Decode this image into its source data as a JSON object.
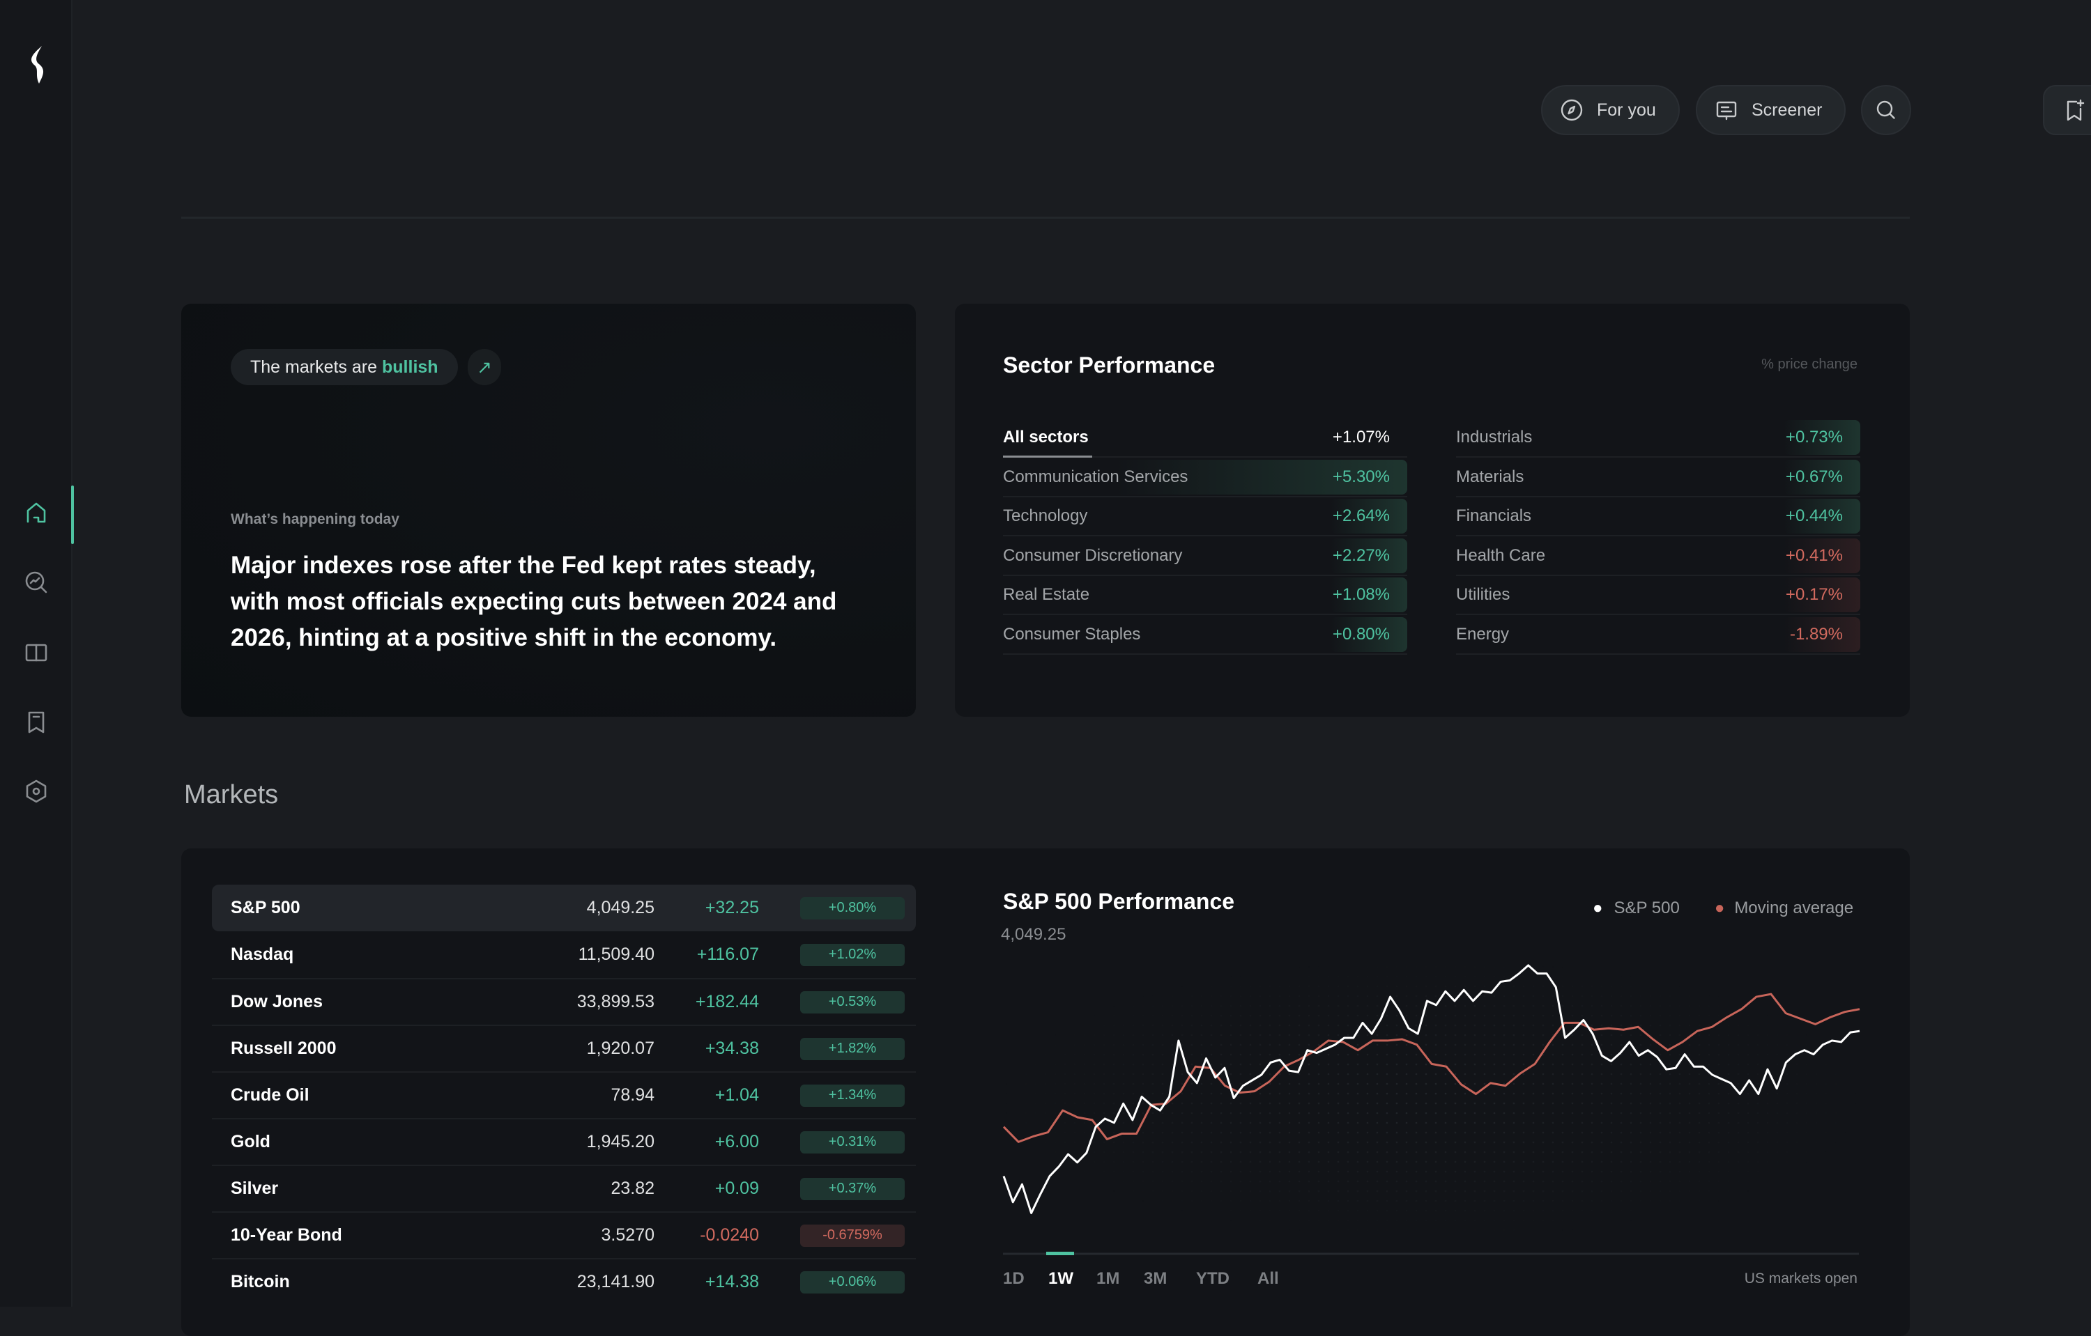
{
  "sidebar": {
    "items": [
      {
        "name": "home",
        "active": true
      },
      {
        "name": "explore"
      },
      {
        "name": "learn"
      },
      {
        "name": "watchlist"
      },
      {
        "name": "settings"
      }
    ]
  },
  "header": {
    "for_you": "For you",
    "screener": "Screener"
  },
  "hero": {
    "tag_prefix": "The markets are",
    "tag_highlight": "bullish",
    "subtitle": "What’s happening today",
    "headline": "Major indexes rose after the Fed kept rates steady, with most officials expecting cuts between 2024 and 2026, hinting at a positive shift in the economy."
  },
  "sector": {
    "title": "Sector Performance",
    "note": "% price change",
    "left": [
      {
        "name": "All sectors",
        "value": "+1.07%",
        "tone": "all"
      },
      {
        "name": "Communication Services",
        "value": "+5.30%",
        "tone": "pos"
      },
      {
        "name": "Technology",
        "value": "+2.64%",
        "tone": "pos"
      },
      {
        "name": "Consumer Discretionary",
        "value": "+2.27%",
        "tone": "pos"
      },
      {
        "name": "Real Estate",
        "value": "+1.08%",
        "tone": "pos"
      },
      {
        "name": "Consumer Staples",
        "value": "+0.80%",
        "tone": "pos"
      }
    ],
    "right": [
      {
        "name": "Industrials",
        "value": "+0.73%",
        "tone": "pos"
      },
      {
        "name": "Materials",
        "value": "+0.67%",
        "tone": "pos"
      },
      {
        "name": "Financials",
        "value": "+0.44%",
        "tone": "pos"
      },
      {
        "name": "Health Care",
        "value": "+0.41%",
        "tone": "neg"
      },
      {
        "name": "Utilities",
        "value": "+0.17%",
        "tone": "neg"
      },
      {
        "name": "Energy",
        "value": "-1.89%",
        "tone": "neg"
      }
    ]
  },
  "markets": {
    "title": "Markets",
    "rows": [
      {
        "name": "S&P 500",
        "price": "4,049.25",
        "change": "+32.25",
        "pct": "+0.80%",
        "tone": "pos"
      },
      {
        "name": "Nasdaq",
        "price": "11,509.40",
        "change": "+116.07",
        "pct": "+1.02%",
        "tone": "pos"
      },
      {
        "name": "Dow Jones",
        "price": "33,899.53",
        "change": "+182.44",
        "pct": "+0.53%",
        "tone": "pos"
      },
      {
        "name": "Russell 2000",
        "price": "1,920.07",
        "change": "+34.38",
        "pct": "+1.82%",
        "tone": "pos"
      },
      {
        "name": "Crude Oil",
        "price": "78.94",
        "change": "+1.04",
        "pct": "+1.34%",
        "tone": "pos"
      },
      {
        "name": "Gold",
        "price": "1,945.20",
        "change": "+6.00",
        "pct": "+0.31%",
        "tone": "pos"
      },
      {
        "name": "Silver",
        "price": "23.82",
        "change": "+0.09",
        "pct": "+0.37%",
        "tone": "pos"
      },
      {
        "name": "10-Year Bond",
        "price": "3.5270",
        "change": "-0.0240",
        "pct": "-0.6759%",
        "tone": "neg"
      },
      {
        "name": "Bitcoin",
        "price": "23,141.90",
        "change": "+14.38",
        "pct": "+0.06%",
        "tone": "pos"
      }
    ]
  },
  "chart_data": {
    "type": "line",
    "title": "S&P 500 Performance",
    "subtitle": "4,049.25",
    "legend_position": "top-right",
    "grid": false,
    "series": [
      {
        "name": "S&P 500",
        "color": "#ffffff",
        "values": [
          21,
          11.5,
          18,
          7.5,
          14.5,
          21,
          24.5,
          29,
          26,
          29.5,
          39,
          42,
          40.5,
          47.5,
          41.5,
          50,
          47,
          45,
          50,
          70.5,
          59,
          55,
          64,
          57,
          60.5,
          49.5,
          54,
          56,
          58,
          62.5,
          63.5,
          59.5,
          59,
          67,
          66,
          67.5,
          69,
          71.5,
          71.5,
          77,
          73,
          78.5,
          86.5,
          81.5,
          75,
          73,
          85,
          83.5,
          88.5,
          85,
          89,
          85,
          88.5,
          88,
          92,
          92.5,
          95,
          98,
          95,
          95,
          90,
          71.5,
          74.5,
          78,
          73,
          65,
          63,
          66,
          70,
          65,
          67,
          64.5,
          60,
          60.5,
          65.5,
          61,
          61,
          58,
          56.5,
          55,
          51,
          56,
          51,
          60,
          53,
          62.5,
          65.5,
          67,
          65.5,
          69,
          70.5,
          70,
          73.5,
          74
        ]
      },
      {
        "name": "Moving average",
        "color": "#c8655a",
        "values": [
          39,
          33.5,
          35.5,
          37,
          45,
          42.5,
          41.5,
          34.5,
          36.5,
          36.5,
          47,
          47.5,
          52,
          61,
          60.5,
          54,
          51.5,
          52,
          55.5,
          61,
          63.5,
          66.5,
          70.5,
          70,
          67,
          70.5,
          70.5,
          71,
          69,
          62,
          61,
          54.5,
          51,
          55,
          54,
          58.5,
          62,
          70,
          77,
          77,
          74.5,
          75,
          74.5,
          75.5,
          71,
          67,
          70,
          74,
          75.5,
          79,
          82,
          86.5,
          87.5,
          80.5,
          78.5,
          76.5,
          79,
          81,
          82
        ]
      }
    ],
    "ranges": [
      "1D",
      "1W",
      "1M",
      "3M",
      "YTD",
      "All"
    ],
    "active_range": "1W",
    "status": "US markets open"
  },
  "colors": {
    "accent": "#4fc3a1",
    "negative": "#d26a5f",
    "background": "#1a1c20"
  }
}
